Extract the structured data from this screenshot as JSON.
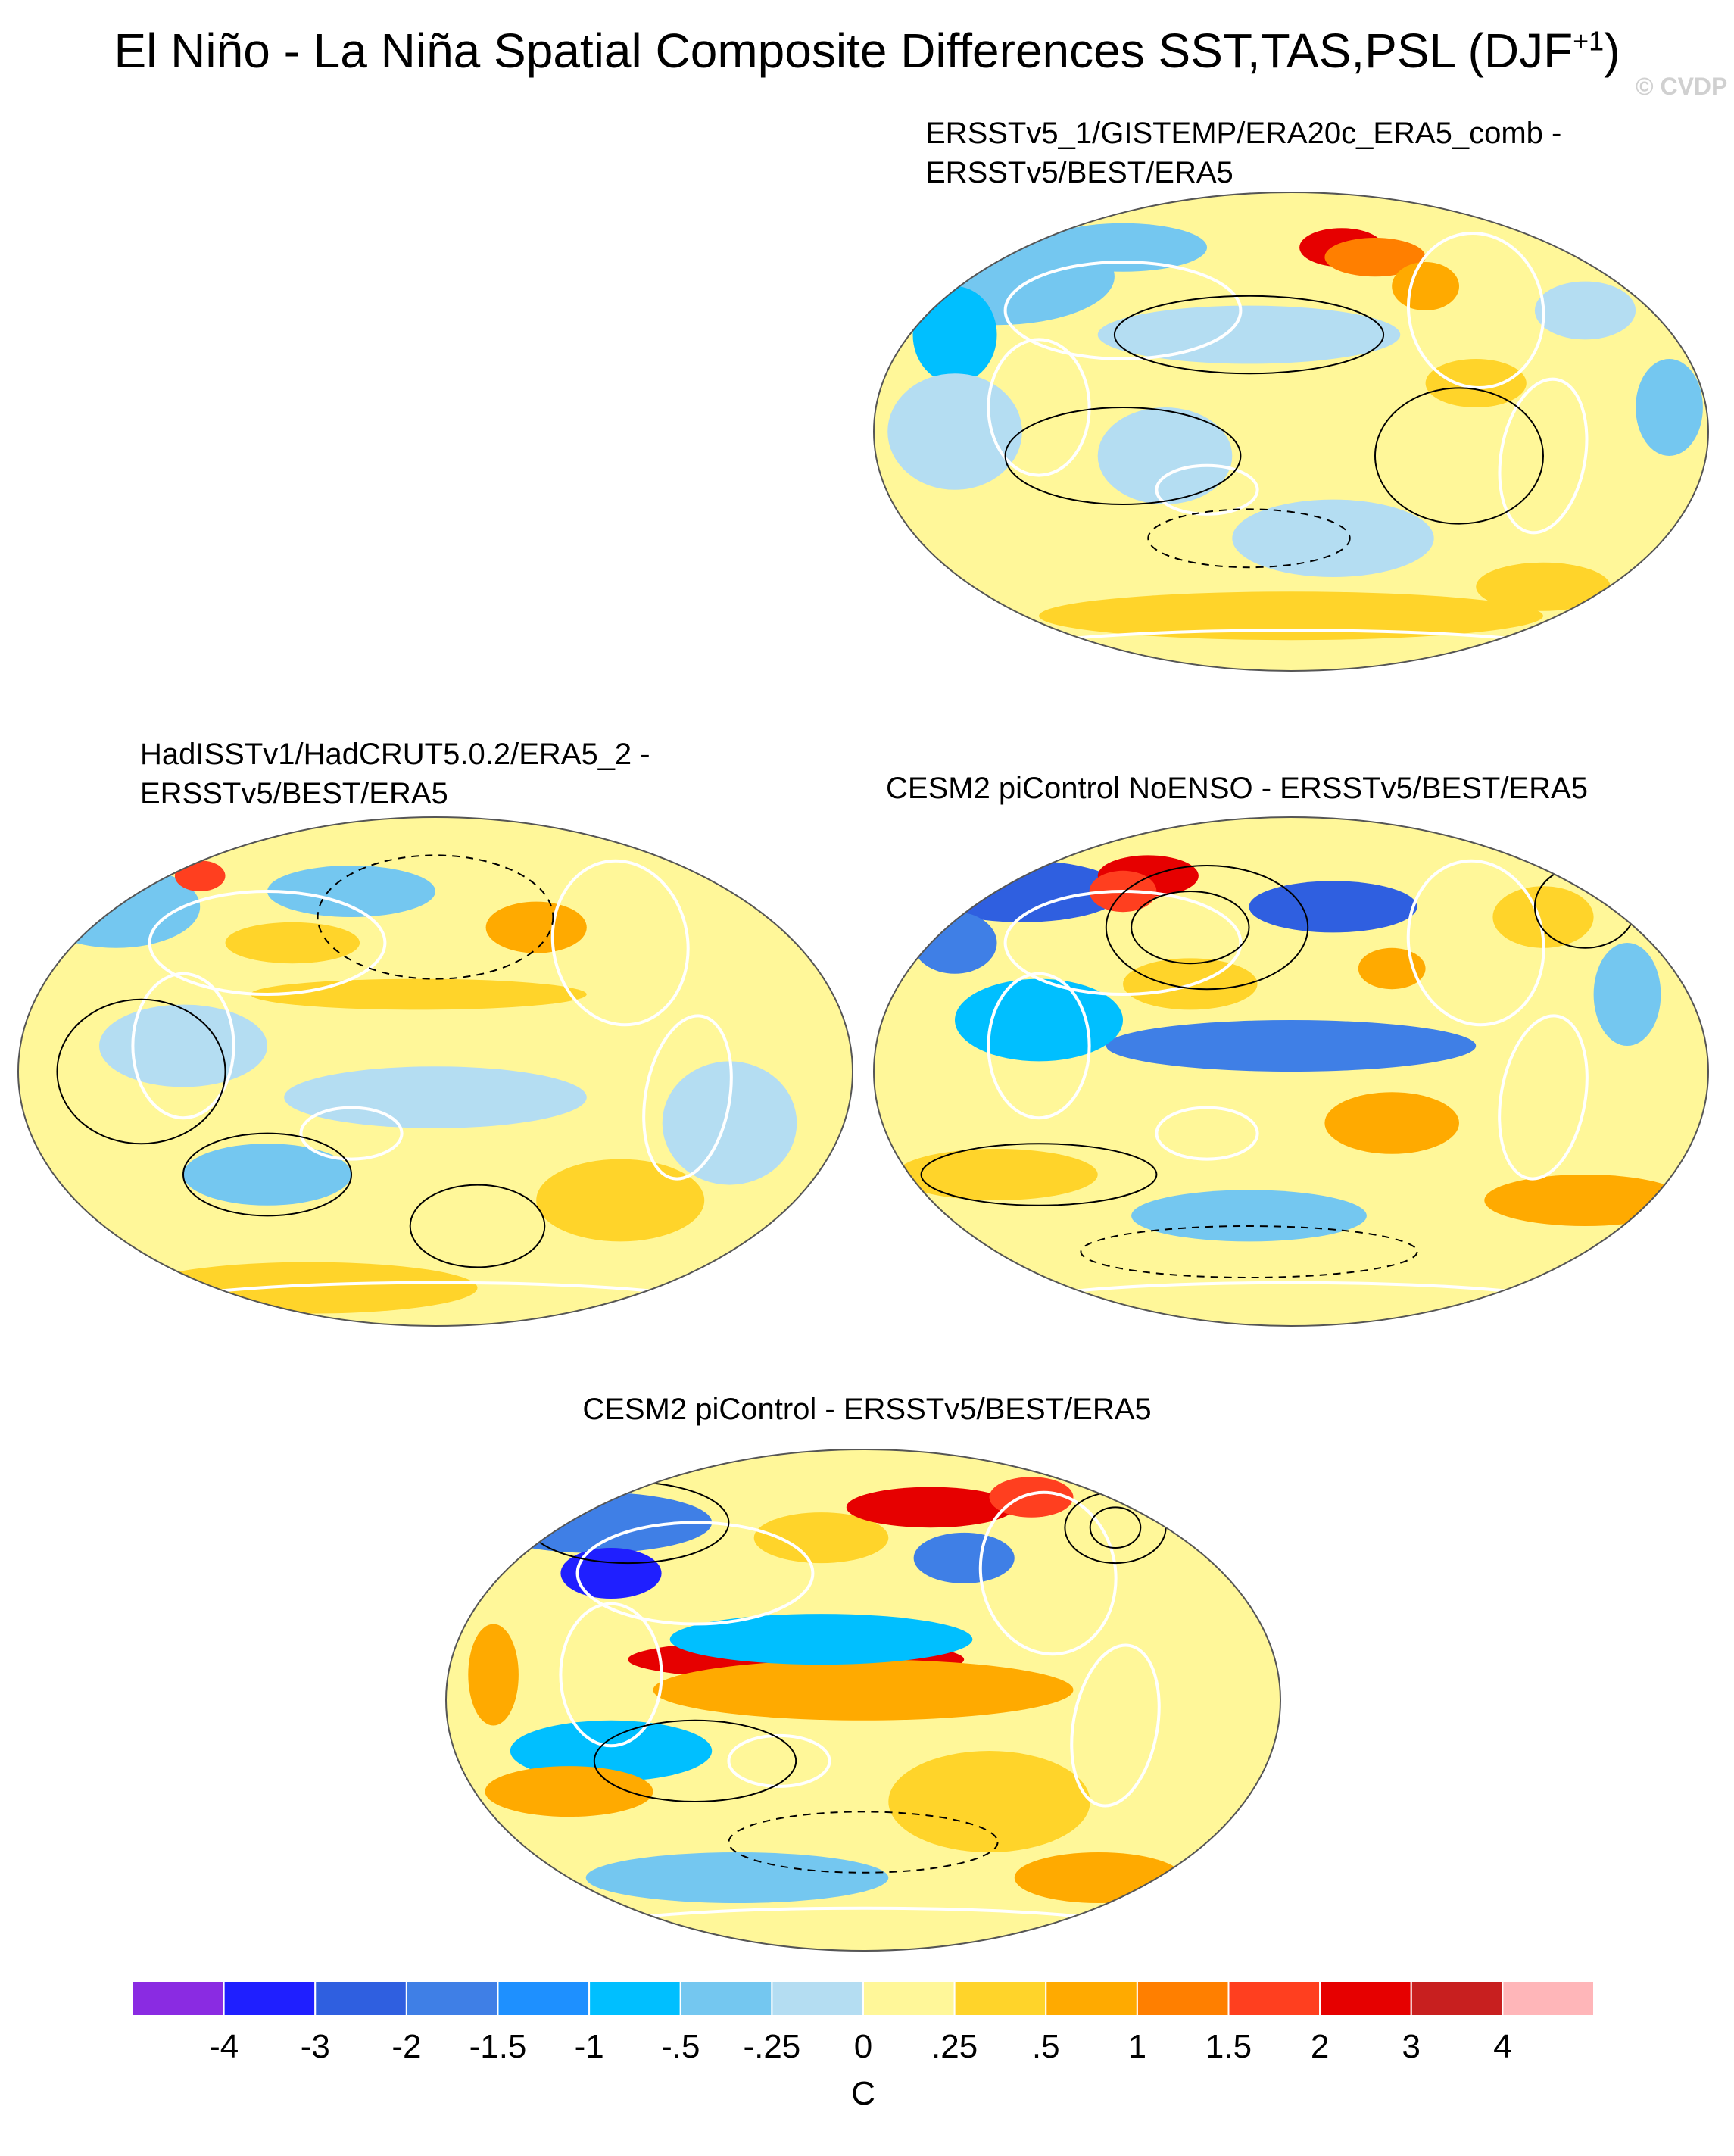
{
  "title": {
    "text": "El Niño - La Niña Spatial Composite Differences SST,TAS,PSL (DJF",
    "sup": "+1",
    "close": ")"
  },
  "credit": "© CVDP",
  "panels": [
    {
      "title_line1": "ERSSTv5_1/GISTEMP/ERA20c_ERA5_comb -",
      "title_line2": "ERSSTv5/BEST/ERA5"
    },
    {
      "title_line1": "HadISSTv1/HadCRUT5.0.2/ERA5_2 -",
      "title_line2": "ERSSTv5/BEST/ERA5"
    },
    {
      "title_line1": "CESM2 piControl NoENSO - ERSSTv5/BEST/ERA5",
      "title_line2": ""
    },
    {
      "title_line1": "CESM2 piControl - ERSSTv5/BEST/ERA5",
      "title_line2": ""
    }
  ],
  "colorbar": {
    "units": "C",
    "labels": [
      "-4",
      "-3",
      "-2",
      "-1.5",
      "-1",
      "-.5",
      "-.25",
      "0",
      ".25",
      ".5",
      "1",
      "1.5",
      "2",
      "3",
      "4"
    ],
    "colors": [
      "#8a2be2",
      "#1f1fff",
      "#2f5fe0",
      "#3f7fe6",
      "#1e90ff",
      "#00bfff",
      "#74c7f0",
      "#b4ddf2",
      "#fff799",
      "#ffd42a",
      "#ffaa00",
      "#ff7f00",
      "#ff3f1f",
      "#e60000",
      "#c81f1f",
      "#ffb6b9"
    ]
  },
  "map_style": {
    "ocean_base": "#fff799",
    "neutral_neg": "#b4ddf2",
    "land_outline": "#ffffff",
    "psl_contour": "#000000"
  }
}
